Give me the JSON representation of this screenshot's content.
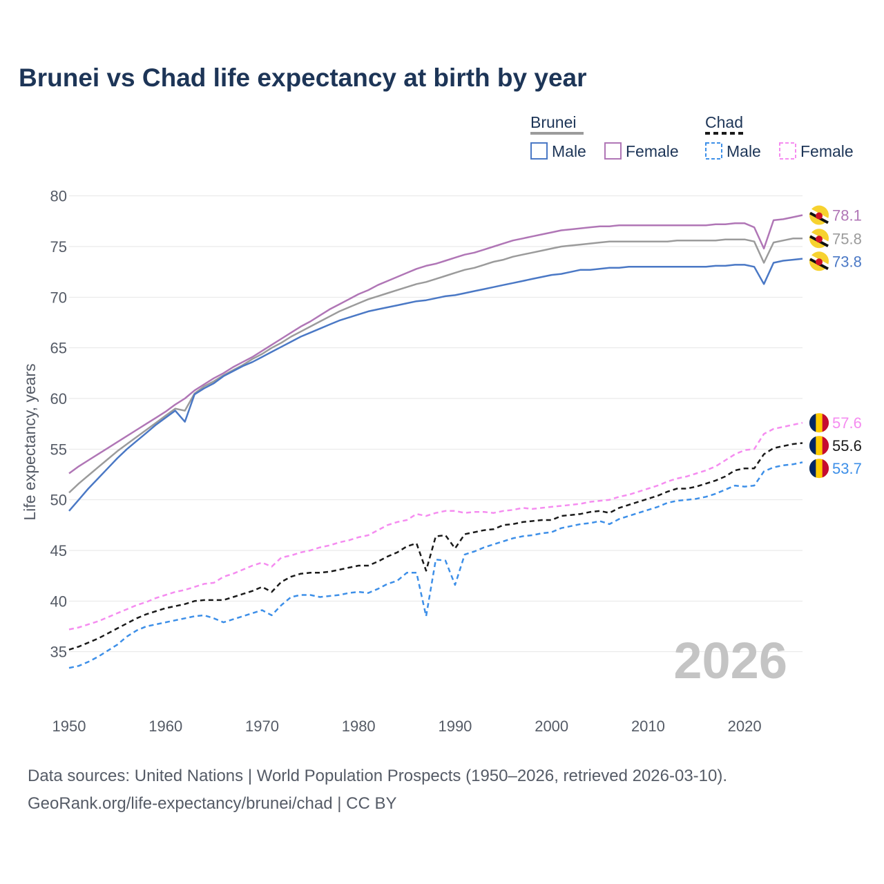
{
  "title": "Brunei vs Chad life expectancy at birth by year",
  "footer": {
    "line1": "Data sources: United Nations | World Population Prospects (1950–2026, retrieved 2026-03-10).",
    "line2": "GeoRank.org/life-expectancy/brunei/chad | CC BY"
  },
  "year_label": "2026",
  "legend": {
    "groups": [
      {
        "name": "Brunei",
        "color": "#9b9b9b",
        "dashed": false,
        "items": [
          {
            "label": "Male",
            "color": "#4a78c5"
          },
          {
            "label": "Female",
            "color": "#b076b6"
          }
        ]
      },
      {
        "name": "Chad",
        "color": "#1a1a1a",
        "dashed": true,
        "items": [
          {
            "label": "Male",
            "color": "#3d8fe8"
          },
          {
            "label": "Female",
            "color": "#f58cf0"
          }
        ]
      }
    ]
  },
  "chart_data": {
    "type": "line",
    "title": "Brunei vs Chad life expectancy at birth by year",
    "xlabel": "",
    "ylabel": "Life expectancy, years",
    "xlim": [
      1950,
      2026
    ],
    "ylim": [
      30,
      81
    ],
    "xticks": [
      1950,
      1960,
      1970,
      1980,
      1990,
      2000,
      2010,
      2020
    ],
    "yticks": [
      35,
      40,
      45,
      50,
      55,
      60,
      65,
      70,
      75,
      80
    ],
    "grid": true,
    "x": [
      1950,
      1951,
      1952,
      1953,
      1954,
      1955,
      1956,
      1957,
      1958,
      1959,
      1960,
      1961,
      1962,
      1963,
      1964,
      1965,
      1966,
      1967,
      1968,
      1969,
      1970,
      1971,
      1972,
      1973,
      1974,
      1975,
      1976,
      1977,
      1978,
      1979,
      1980,
      1981,
      1982,
      1983,
      1984,
      1985,
      1986,
      1987,
      1988,
      1989,
      1990,
      1991,
      1992,
      1993,
      1994,
      1995,
      1996,
      1997,
      1998,
      1999,
      2000,
      2001,
      2002,
      2003,
      2004,
      2005,
      2006,
      2007,
      2008,
      2009,
      2010,
      2011,
      2012,
      2013,
      2014,
      2015,
      2016,
      2017,
      2018,
      2019,
      2020,
      2021,
      2022,
      2023,
      2024,
      2025,
      2026
    ],
    "series": [
      {
        "name": "Brunei Female",
        "country": "Brunei",
        "sex": "Female",
        "color": "#b076b6",
        "dashed": false,
        "end_label": "78.1",
        "values": [
          52.6,
          53.3,
          53.9,
          54.5,
          55.1,
          55.7,
          56.3,
          56.9,
          57.5,
          58.1,
          58.7,
          59.4,
          60.0,
          60.8,
          61.4,
          62.0,
          62.5,
          63.1,
          63.6,
          64.1,
          64.7,
          65.3,
          65.9,
          66.5,
          67.1,
          67.6,
          68.2,
          68.8,
          69.3,
          69.8,
          70.3,
          70.7,
          71.2,
          71.6,
          72.0,
          72.4,
          72.8,
          73.1,
          73.3,
          73.6,
          73.9,
          74.2,
          74.4,
          74.7,
          75.0,
          75.3,
          75.6,
          75.8,
          76.0,
          76.2,
          76.4,
          76.6,
          76.7,
          76.8,
          76.9,
          77.0,
          77.0,
          77.1,
          77.1,
          77.1,
          77.1,
          77.1,
          77.1,
          77.1,
          77.1,
          77.1,
          77.1,
          77.2,
          77.2,
          77.3,
          77.3,
          76.9,
          74.8,
          77.6,
          77.7,
          77.9,
          78.1
        ]
      },
      {
        "name": "Brunei Total",
        "country": "Brunei",
        "sex": "Total",
        "color": "#9b9b9b",
        "dashed": false,
        "end_label": "75.8",
        "values": [
          50.7,
          51.6,
          52.4,
          53.2,
          54.0,
          54.8,
          55.5,
          56.2,
          56.9,
          57.6,
          58.3,
          59.0,
          58.8,
          60.5,
          61.2,
          61.7,
          62.3,
          62.8,
          63.3,
          63.9,
          64.4,
          65.0,
          65.5,
          66.1,
          66.6,
          67.1,
          67.6,
          68.1,
          68.6,
          69.0,
          69.4,
          69.8,
          70.1,
          70.4,
          70.7,
          71.0,
          71.3,
          71.5,
          71.8,
          72.1,
          72.4,
          72.7,
          72.9,
          73.2,
          73.5,
          73.7,
          74.0,
          74.2,
          74.4,
          74.6,
          74.8,
          75.0,
          75.1,
          75.2,
          75.3,
          75.4,
          75.5,
          75.5,
          75.5,
          75.5,
          75.5,
          75.5,
          75.5,
          75.6,
          75.6,
          75.6,
          75.6,
          75.6,
          75.7,
          75.7,
          75.7,
          75.5,
          73.4,
          75.4,
          75.6,
          75.8,
          75.8
        ]
      },
      {
        "name": "Brunei Male",
        "country": "Brunei",
        "sex": "Male",
        "color": "#4a78c5",
        "dashed": false,
        "end_label": "73.8",
        "values": [
          48.9,
          50.0,
          51.1,
          52.1,
          53.1,
          54.1,
          55.0,
          55.8,
          56.6,
          57.4,
          58.1,
          58.8,
          57.7,
          60.4,
          61.0,
          61.5,
          62.2,
          62.7,
          63.2,
          63.6,
          64.1,
          64.6,
          65.1,
          65.6,
          66.1,
          66.5,
          66.9,
          67.3,
          67.7,
          68.0,
          68.3,
          68.6,
          68.8,
          69.0,
          69.2,
          69.4,
          69.6,
          69.7,
          69.9,
          70.1,
          70.2,
          70.4,
          70.6,
          70.8,
          71.0,
          71.2,
          71.4,
          71.6,
          71.8,
          72.0,
          72.2,
          72.3,
          72.5,
          72.7,
          72.7,
          72.8,
          72.9,
          72.9,
          73.0,
          73.0,
          73.0,
          73.0,
          73.0,
          73.0,
          73.0,
          73.0,
          73.0,
          73.1,
          73.1,
          73.2,
          73.2,
          73.0,
          71.3,
          73.4,
          73.6,
          73.7,
          73.8
        ]
      },
      {
        "name": "Chad Female",
        "country": "Chad",
        "sex": "Female",
        "color": "#f58cf0",
        "dashed": true,
        "end_label": "57.6",
        "values": [
          37.2,
          37.4,
          37.7,
          38.0,
          38.4,
          38.8,
          39.2,
          39.6,
          39.9,
          40.3,
          40.6,
          40.9,
          41.1,
          41.4,
          41.7,
          41.8,
          42.4,
          42.7,
          43.1,
          43.5,
          43.8,
          43.4,
          44.3,
          44.5,
          44.8,
          45.0,
          45.3,
          45.5,
          45.8,
          46.0,
          46.3,
          46.5,
          47.0,
          47.5,
          47.8,
          48.0,
          48.6,
          48.4,
          48.7,
          48.9,
          48.9,
          48.7,
          48.8,
          48.8,
          48.7,
          48.9,
          49.0,
          49.2,
          49.1,
          49.2,
          49.3,
          49.4,
          49.5,
          49.6,
          49.8,
          49.9,
          50.0,
          50.3,
          50.5,
          50.8,
          51.1,
          51.4,
          51.8,
          52.1,
          52.3,
          52.6,
          52.9,
          53.3,
          53.9,
          54.5,
          54.9,
          55.0,
          56.5,
          57.0,
          57.2,
          57.4,
          57.6
        ]
      },
      {
        "name": "Chad Total",
        "country": "Chad",
        "sex": "Total",
        "color": "#1a1a1a",
        "dashed": true,
        "end_label": "55.6",
        "values": [
          35.2,
          35.5,
          35.9,
          36.3,
          36.8,
          37.3,
          37.8,
          38.3,
          38.7,
          39.0,
          39.3,
          39.5,
          39.7,
          40.0,
          40.1,
          40.1,
          40.1,
          40.4,
          40.7,
          41.0,
          41.4,
          40.9,
          41.9,
          42.4,
          42.7,
          42.8,
          42.8,
          42.9,
          43.1,
          43.3,
          43.5,
          43.5,
          43.9,
          44.4,
          44.8,
          45.4,
          45.7,
          43.0,
          46.4,
          46.5,
          45.2,
          46.6,
          46.8,
          47.0,
          47.1,
          47.5,
          47.6,
          47.8,
          47.9,
          48.0,
          48.0,
          48.4,
          48.5,
          48.6,
          48.8,
          48.9,
          48.7,
          49.2,
          49.5,
          49.8,
          50.1,
          50.4,
          50.8,
          51.1,
          51.1,
          51.3,
          51.6,
          51.9,
          52.3,
          52.9,
          53.1,
          53.1,
          54.5,
          55.1,
          55.3,
          55.5,
          55.6
        ]
      },
      {
        "name": "Chad Male",
        "country": "Chad",
        "sex": "Male",
        "color": "#3d8fe8",
        "dashed": true,
        "end_label": "53.7",
        "values": [
          33.4,
          33.6,
          34.0,
          34.5,
          35.1,
          35.7,
          36.5,
          37.1,
          37.5,
          37.7,
          37.9,
          38.1,
          38.3,
          38.5,
          38.6,
          38.3,
          37.9,
          38.2,
          38.5,
          38.8,
          39.1,
          38.6,
          39.6,
          40.4,
          40.6,
          40.6,
          40.4,
          40.5,
          40.6,
          40.8,
          40.9,
          40.8,
          41.2,
          41.7,
          42.0,
          42.8,
          42.8,
          38.5,
          44.1,
          44.0,
          41.6,
          44.6,
          44.9,
          45.3,
          45.6,
          45.9,
          46.2,
          46.4,
          46.5,
          46.7,
          46.8,
          47.2,
          47.4,
          47.6,
          47.7,
          47.9,
          47.6,
          48.1,
          48.4,
          48.7,
          49.0,
          49.3,
          49.7,
          49.9,
          50.0,
          50.1,
          50.3,
          50.6,
          51.0,
          51.4,
          51.3,
          51.4,
          52.8,
          53.2,
          53.4,
          53.5,
          53.7
        ]
      }
    ]
  }
}
